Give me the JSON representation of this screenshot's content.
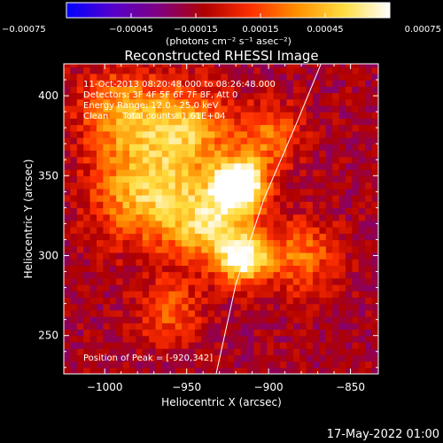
{
  "chart_data": {
    "type": "heatmap",
    "title": "Reconstructed RHESSI Image",
    "xlabel": "Heliocentric X (arcsec)",
    "ylabel": "Heliocentric Y (arcsec)",
    "xlim": [
      -1025,
      -833
    ],
    "ylim": [
      226,
      420
    ],
    "x_ticks": [
      -1000,
      -950,
      -900,
      -850
    ],
    "x_tick_labels": [
      "−1000",
      "−950",
      "−900",
      "−850"
    ],
    "y_ticks": [
      250,
      300,
      350,
      400
    ],
    "y_tick_labels": [
      "250",
      "300",
      "350",
      "400"
    ],
    "colorbar": {
      "range": [
        -0.00075,
        0.00075
      ],
      "ticks": [
        -0.00075,
        -0.00045,
        -0.00015,
        0.00015,
        0.00045,
        0.00075
      ],
      "tick_labels": [
        "−0.00075",
        "−0.00045",
        "−0.00015",
        "0.00015",
        "0.00045",
        "0.00075"
      ],
      "unit_label": "(photons cm⁻² s⁻¹ asec⁻²)",
      "colors": [
        "#0000ff",
        "#5500cc",
        "#800080",
        "#b00000",
        "#ff3000",
        "#ff9000",
        "#ffdd40",
        "#ffffff"
      ]
    },
    "info_lines": [
      "11-Oct-2013 08:20:48.000 to 08:26:48.000",
      "Detectors: 3F 4F 5F 6F 7F 8F, Att 0",
      "Energy Range: 12.0 - 25.0 keV",
      "Clean     Total counts: 1.61E+04"
    ],
    "peak_label": "Position of Peak = [-920,342]",
    "peak_position": [
      -920,
      342
    ],
    "limb_points": [
      [
        -932,
        226
      ],
      [
        -920,
        282
      ],
      [
        -903,
        335
      ],
      [
        -882,
        385
      ],
      [
        -868,
        420
      ]
    ],
    "sources": [
      {
        "x": -918,
        "y": 345,
        "amp": 1.0,
        "sigma": 11
      },
      {
        "x": -915,
        "y": 298,
        "amp": 0.75,
        "sigma": 10
      },
      {
        "x": -935,
        "y": 320,
        "amp": 0.55,
        "sigma": 18
      },
      {
        "x": -975,
        "y": 340,
        "amp": 0.55,
        "sigma": 22
      },
      {
        "x": -990,
        "y": 390,
        "amp": 0.45,
        "sigma": 18
      },
      {
        "x": -950,
        "y": 380,
        "amp": 0.5,
        "sigma": 18
      },
      {
        "x": -900,
        "y": 375,
        "amp": 0.35,
        "sigma": 14
      },
      {
        "x": -880,
        "y": 300,
        "amp": 0.35,
        "sigma": 16
      },
      {
        "x": -960,
        "y": 265,
        "amp": 0.3,
        "sigma": 14
      }
    ]
  },
  "footer": {
    "date": "17-May-2022 01:00"
  }
}
